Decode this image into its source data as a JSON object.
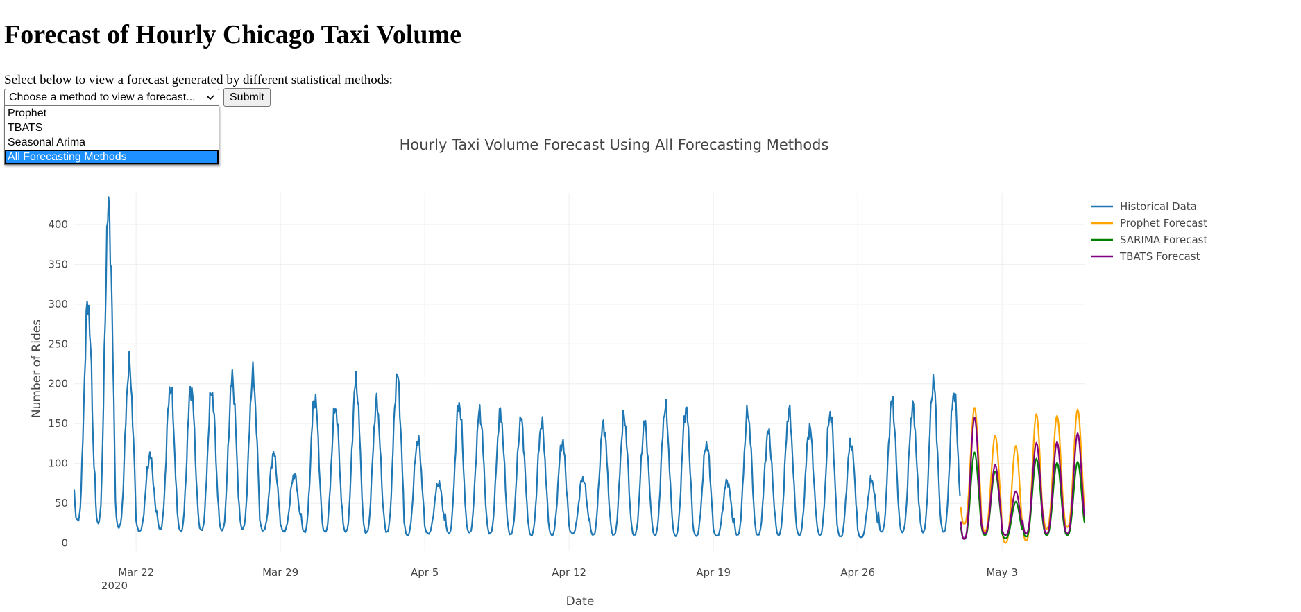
{
  "page": {
    "title": "Forecast of Hourly Chicago Taxi Volume",
    "instructions": "Select below to view a forecast generated by different statistical methods:"
  },
  "form": {
    "select_placeholder": "Choose a method to view a forecast...",
    "submit_label": "Submit",
    "options": [
      "Prophet",
      "TBATS",
      "Seasonal Arima",
      "All Forecasting Methods"
    ],
    "highlighted_option": "All Forecasting Methods"
  },
  "chart_data": {
    "type": "line",
    "title": "Hourly Taxi Volume Forecast Using All Forecasting Methods",
    "xlabel": "Date",
    "ylabel": "Number of Rides",
    "xlim": [
      "2020-03-19",
      "2020-05-07"
    ],
    "ylim": [
      -10,
      440
    ],
    "x_tick_labels": [
      "Mar 22",
      "Mar 29",
      "Apr 5",
      "Apr 12",
      "Apr 19",
      "Apr 26",
      "May 3"
    ],
    "x_tick_dates": [
      "2020-03-22",
      "2020-03-29",
      "2020-04-05",
      "2020-04-12",
      "2020-04-19",
      "2020-04-26",
      "2020-05-03"
    ],
    "x_year_label": "2020",
    "y_ticks": [
      0,
      50,
      100,
      150,
      200,
      250,
      300,
      350,
      400
    ],
    "grid": true,
    "legend_position": "top-right",
    "series": [
      {
        "name": "Historical Data",
        "color": "#1f77b4",
        "start": "2020-03-19",
        "daily_values": [
          {
            "date": "2020-03-19",
            "peak": 300,
            "trough": 28
          },
          {
            "date": "2020-03-20",
            "peak": 418,
            "trough": 25
          },
          {
            "date": "2020-03-21",
            "peak": 222,
            "trough": 20
          },
          {
            "date": "2020-03-22",
            "peak": 110,
            "trough": 15
          },
          {
            "date": "2020-03-23",
            "peak": 197,
            "trough": 18
          },
          {
            "date": "2020-03-24",
            "peak": 196,
            "trough": 15
          },
          {
            "date": "2020-03-25",
            "peak": 191,
            "trough": 16
          },
          {
            "date": "2020-03-26",
            "peak": 206,
            "trough": 16
          },
          {
            "date": "2020-03-27",
            "peak": 210,
            "trough": 18
          },
          {
            "date": "2020-03-28",
            "peak": 112,
            "trough": 16
          },
          {
            "date": "2020-03-29",
            "peak": 86,
            "trough": 15
          },
          {
            "date": "2020-03-30",
            "peak": 184,
            "trough": 14
          },
          {
            "date": "2020-03-31",
            "peak": 171,
            "trough": 14
          },
          {
            "date": "2020-04-01",
            "peak": 203,
            "trough": 14
          },
          {
            "date": "2020-04-02",
            "peak": 176,
            "trough": 13
          },
          {
            "date": "2020-04-03",
            "peak": 210,
            "trough": 14
          },
          {
            "date": "2020-04-04",
            "peak": 130,
            "trough": 10
          },
          {
            "date": "2020-04-05",
            "peak": 76,
            "trough": 12
          },
          {
            "date": "2020-04-06",
            "peak": 176,
            "trough": 12
          },
          {
            "date": "2020-04-07",
            "peak": 165,
            "trough": 13
          },
          {
            "date": "2020-04-08",
            "peak": 163,
            "trough": 12
          },
          {
            "date": "2020-04-09",
            "peak": 155,
            "trough": 11
          },
          {
            "date": "2020-04-10",
            "peak": 150,
            "trough": 10
          },
          {
            "date": "2020-04-11",
            "peak": 127,
            "trough": 10
          },
          {
            "date": "2020-04-12",
            "peak": 82,
            "trough": 12
          },
          {
            "date": "2020-04-13",
            "peak": 150,
            "trough": 10
          },
          {
            "date": "2020-04-14",
            "peak": 158,
            "trough": 10
          },
          {
            "date": "2020-04-15",
            "peak": 150,
            "trough": 10
          },
          {
            "date": "2020-04-16",
            "peak": 170,
            "trough": 10
          },
          {
            "date": "2020-04-17",
            "peak": 169,
            "trough": 9
          },
          {
            "date": "2020-04-18",
            "peak": 125,
            "trough": 9
          },
          {
            "date": "2020-04-19",
            "peak": 78,
            "trough": 9
          },
          {
            "date": "2020-04-20",
            "peak": 163,
            "trough": 10
          },
          {
            "date": "2020-04-21",
            "peak": 139,
            "trough": 10
          },
          {
            "date": "2020-04-22",
            "peak": 165,
            "trough": 10
          },
          {
            "date": "2020-04-23",
            "peak": 145,
            "trough": 10
          },
          {
            "date": "2020-04-24",
            "peak": 164,
            "trough": 10
          },
          {
            "date": "2020-04-25",
            "peak": 127,
            "trough": 8
          },
          {
            "date": "2020-04-26",
            "peak": 80,
            "trough": 7
          },
          {
            "date": "2020-04-27",
            "peak": 179,
            "trough": 14
          },
          {
            "date": "2020-04-28",
            "peak": 170,
            "trough": 14
          },
          {
            "date": "2020-04-29",
            "peak": 202,
            "trough": 14
          },
          {
            "date": "2020-04-30",
            "peak": 190,
            "trough": 14
          }
        ]
      },
      {
        "name": "Prophet Forecast",
        "color": "#ffa500",
        "start": "2020-05-01",
        "daily_values": [
          {
            "date": "2020-05-01",
            "peak": 170,
            "trough": 24
          },
          {
            "date": "2020-05-02",
            "peak": 135,
            "trough": 15
          },
          {
            "date": "2020-05-03",
            "peak": 122,
            "trough": 0
          },
          {
            "date": "2020-05-04",
            "peak": 162,
            "trough": 3
          },
          {
            "date": "2020-05-05",
            "peak": 160,
            "trough": 18
          },
          {
            "date": "2020-05-06",
            "peak": 168,
            "trough": 20
          },
          {
            "date": "2020-05-07",
            "peak": 167,
            "trough": 25
          }
        ]
      },
      {
        "name": "SARIMA Forecast",
        "color": "#008000",
        "start": "2020-05-01",
        "daily_values": [
          {
            "date": "2020-05-01",
            "peak": 114,
            "trough": 5
          },
          {
            "date": "2020-05-02",
            "peak": 90,
            "trough": 10
          },
          {
            "date": "2020-05-03",
            "peak": 52,
            "trough": 6
          },
          {
            "date": "2020-05-04",
            "peak": 106,
            "trough": 8
          },
          {
            "date": "2020-05-05",
            "peak": 101,
            "trough": 10
          },
          {
            "date": "2020-05-06",
            "peak": 102,
            "trough": 10
          },
          {
            "date": "2020-05-07",
            "peak": 108,
            "trough": 12
          }
        ]
      },
      {
        "name": "TBATS Forecast",
        "color": "#800080",
        "start": "2020-05-01",
        "daily_values": [
          {
            "date": "2020-05-01",
            "peak": 158,
            "trough": 5
          },
          {
            "date": "2020-05-02",
            "peak": 98,
            "trough": 12
          },
          {
            "date": "2020-05-03",
            "peak": 65,
            "trough": 10
          },
          {
            "date": "2020-05-04",
            "peak": 126,
            "trough": 12
          },
          {
            "date": "2020-05-05",
            "peak": 127,
            "trough": 12
          },
          {
            "date": "2020-05-06",
            "peak": 138,
            "trough": 12
          },
          {
            "date": "2020-05-07",
            "peak": 148,
            "trough": 14
          }
        ]
      }
    ]
  }
}
